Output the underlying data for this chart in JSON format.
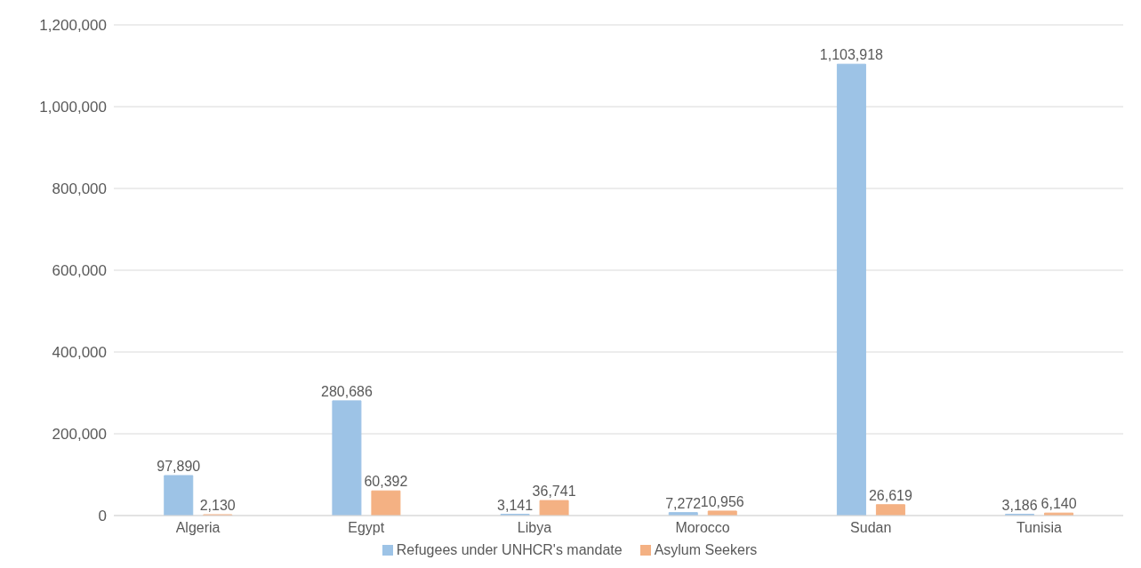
{
  "chart_data": {
    "type": "bar",
    "categories": [
      "Algeria",
      "Egypt",
      "Libya",
      "Morocco",
      "Sudan",
      "Tunisia"
    ],
    "series": [
      {
        "name": "Refugees under UNHCR's mandate",
        "color": "#9dc3e6",
        "values": [
          97890,
          280686,
          3141,
          7272,
          1103918,
          3186
        ],
        "value_labels": [
          "97,890",
          "280,686",
          "3,141",
          "7,272",
          "1,103,918",
          "3,186"
        ]
      },
      {
        "name": "Asylum Seekers",
        "color": "#f4b183",
        "values": [
          2130,
          60392,
          36741,
          10956,
          26619,
          6140
        ],
        "value_labels": [
          "2,130",
          "60,392",
          "36,741",
          "10,956",
          "26,619",
          "6,140"
        ]
      }
    ],
    "ylim": [
      0,
      1200000
    ],
    "yticks": [
      {
        "value": 0,
        "label": "0"
      },
      {
        "value": 200000,
        "label": "200,000"
      },
      {
        "value": 400000,
        "label": "400,000"
      },
      {
        "value": 600000,
        "label": "600,000"
      },
      {
        "value": 800000,
        "label": "800,000"
      },
      {
        "value": 1000000,
        "label": "1,000,000"
      },
      {
        "value": 1200000,
        "label": "1,200,000"
      }
    ],
    "grid": "y",
    "legend": "bottom"
  }
}
